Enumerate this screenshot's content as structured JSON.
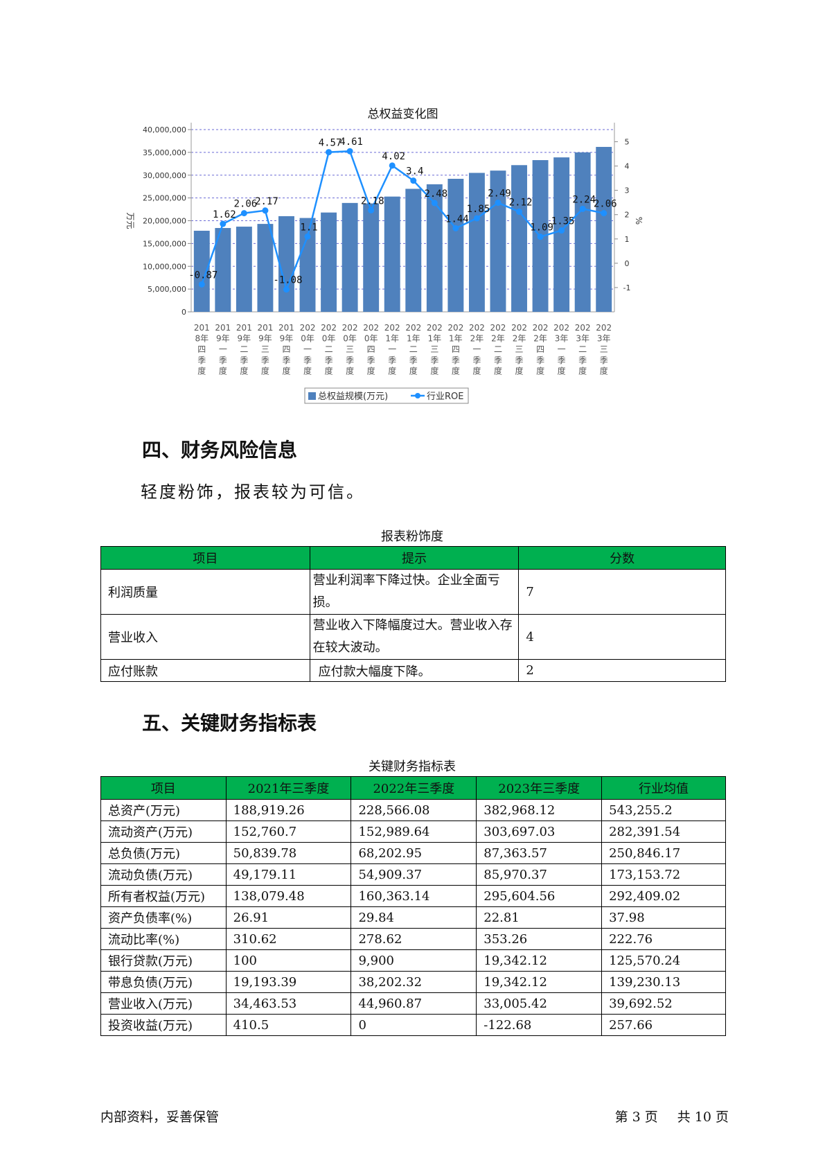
{
  "chart": {
    "title": "总权益变化图",
    "ylabel_left": "万元",
    "ylabel_right": "%",
    "legend": [
      "总权益规模(万元)",
      "行业ROE"
    ]
  },
  "chart_data": {
    "type": "bar",
    "title": "总权益变化图",
    "categories": [
      "2018年四季度",
      "2019年一季度",
      "2019年二季度",
      "2019年三季度",
      "2019年四季度",
      "2020年一季度",
      "2020年二季度",
      "2020年三季度",
      "2020年四季度",
      "2021年一季度",
      "2021年二季度",
      "2021年三季度",
      "2021年四季度",
      "2022年一季度",
      "2022年二季度",
      "2022年三季度",
      "2022年四季度",
      "2023年一季度",
      "2023年二季度",
      "2023年三季度"
    ],
    "category_lines": [
      [
        "201",
        "8年",
        "四",
        "季",
        "度"
      ],
      [
        "201",
        "9年",
        "一",
        "季",
        "度"
      ],
      [
        "201",
        "9年",
        "二",
        "季",
        "度"
      ],
      [
        "201",
        "9年",
        "三",
        "季",
        "度"
      ],
      [
        "201",
        "9年",
        "四",
        "季",
        "度"
      ],
      [
        "202",
        "0年",
        "一",
        "季",
        "度"
      ],
      [
        "202",
        "0年",
        "二",
        "季",
        "度"
      ],
      [
        "202",
        "0年",
        "三",
        "季",
        "度"
      ],
      [
        "202",
        "0年",
        "四",
        "季",
        "度"
      ],
      [
        "202",
        "1年",
        "一",
        "季",
        "度"
      ],
      [
        "202",
        "1年",
        "二",
        "季",
        "度"
      ],
      [
        "202",
        "1年",
        "三",
        "季",
        "度"
      ],
      [
        "202",
        "1年",
        "四",
        "季",
        "度"
      ],
      [
        "202",
        "2年",
        "一",
        "季",
        "度"
      ],
      [
        "202",
        "2年",
        "二",
        "季",
        "度"
      ],
      [
        "202",
        "2年",
        "三",
        "季",
        "度"
      ],
      [
        "202",
        "2年",
        "四",
        "季",
        "度"
      ],
      [
        "202",
        "3年",
        "一",
        "季",
        "度"
      ],
      [
        "202",
        "3年",
        "二",
        "季",
        "度"
      ],
      [
        "202",
        "3年",
        "三",
        "季",
        "度"
      ]
    ],
    "series": [
      {
        "name": "总权益规模(万元)",
        "type": "bar",
        "axis": "left",
        "color": "#4f81bd",
        "values": [
          17800000,
          18400000,
          18700000,
          19300000,
          21000000,
          20600000,
          21800000,
          23900000,
          23800000,
          25300000,
          27000000,
          28000000,
          29200000,
          30500000,
          31000000,
          32200000,
          33300000,
          33900000,
          35000000,
          36200000
        ]
      },
      {
        "name": "行业ROE",
        "type": "line",
        "axis": "right",
        "color": "#1e90ff",
        "values": [
          -0.87,
          1.62,
          2.06,
          2.17,
          -1.08,
          1.1,
          4.57,
          4.61,
          2.18,
          4.02,
          3.4,
          2.48,
          1.44,
          1.85,
          2.49,
          2.12,
          1.09,
          1.35,
          2.24,
          2.06
        ],
        "labels": [
          "-0.87",
          "1.62",
          "2.06",
          "2.17",
          "-1.08",
          "1.1",
          "4.57",
          "4.61",
          "2.18",
          "4.02",
          "3.4",
          "2.48",
          "1.44",
          "1.85",
          "2.49",
          "2.12",
          "1.09",
          "1.35",
          "2.24",
          "2.06"
        ]
      }
    ],
    "y_left": {
      "min": 0,
      "max": 40000000,
      "ticks": [
        "0",
        "5,000,000",
        "10,000,000",
        "15,000,000",
        "20,000,000",
        "25,000,000",
        "30,000,000",
        "35,000,000",
        "40,000,000"
      ]
    },
    "y_right": {
      "min": -2,
      "max": 5.5,
      "ticks": [
        "-1",
        "0",
        "1",
        "2",
        "3",
        "4",
        "5"
      ]
    },
    "grid": true,
    "legend_position": "bottom"
  },
  "section4": {
    "heading": "四、财务风险信息",
    "text": "轻度粉饰，报表较为可信。",
    "table_caption": "报表粉饰度",
    "headers": [
      "项目",
      "提示",
      "分数"
    ],
    "rows": [
      {
        "item": "利润质量",
        "hint": "营业利润率下降过快。企业全面亏损。",
        "score": "7"
      },
      {
        "item": "营业收入",
        "hint": "营业收入下降幅度过大。营业收入存在较大波动。",
        "score": "4"
      },
      {
        "item": "应付账款",
        "hint": "应付款大幅度下降。",
        "score": "2"
      }
    ]
  },
  "section5": {
    "heading": "五、关键财务指标表",
    "table_caption": "关键财务指标表",
    "headers": [
      "项目",
      "2021年三季度",
      "2022年三季度",
      "2023年三季度",
      "行业均值"
    ],
    "rows": [
      [
        "总资产(万元)",
        "188,919.26",
        "228,566.08",
        "382,968.12",
        "543,255.2"
      ],
      [
        "流动资产(万元)",
        "152,760.7",
        "152,989.64",
        "303,697.03",
        "282,391.54"
      ],
      [
        "总负债(万元)",
        "50,839.78",
        "68,202.95",
        "87,363.57",
        "250,846.17"
      ],
      [
        "流动负债(万元)",
        "49,179.11",
        "54,909.37",
        "85,970.37",
        "173,153.72"
      ],
      [
        "所有者权益(万元)",
        "138,079.48",
        "160,363.14",
        "295,604.56",
        "292,409.02"
      ],
      [
        "资产负债率(%)",
        "26.91",
        "29.84",
        "22.81",
        "37.98"
      ],
      [
        "流动比率(%)",
        "310.62",
        "278.62",
        "353.26",
        "222.76"
      ],
      [
        "银行贷款(万元)",
        "100",
        "9,900",
        "19,342.12",
        "125,570.24"
      ],
      [
        "带息负债(万元)",
        "19,193.39",
        "38,202.32",
        "19,342.12",
        "139,230.13"
      ],
      [
        "营业收入(万元)",
        "34,463.53",
        "44,960.87",
        "33,005.42",
        "39,692.52"
      ],
      [
        "投资收益(万元)",
        "410.5",
        "0",
        "-122.68",
        "257.66"
      ]
    ]
  },
  "footer": {
    "left": "内部资料，妥善保管",
    "page_prefix": "第",
    "page_num": "3",
    "page_unit": "页",
    "total_prefix": "共",
    "total_num": "10",
    "total_unit": "页"
  }
}
